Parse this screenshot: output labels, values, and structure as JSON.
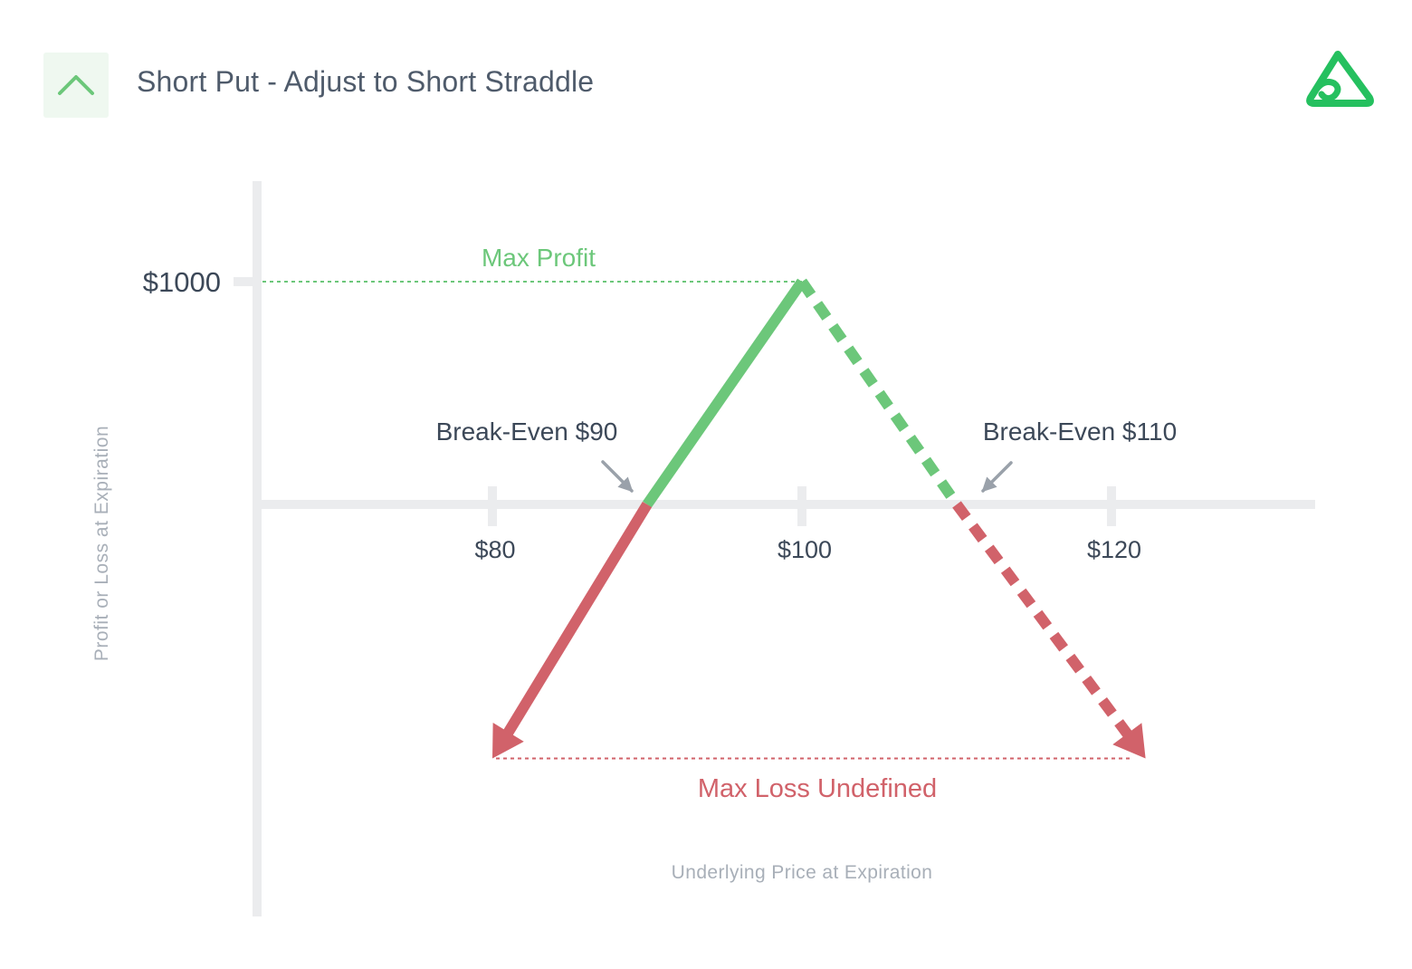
{
  "header": {
    "title": "Short Put - Adjust to Short Straddle",
    "badge_icon": "chevron-up-icon",
    "logo_icon": "brand-logo-icon"
  },
  "colors": {
    "profit": "#6cc77a",
    "loss": "#d1626a",
    "axis": "#ebecee",
    "text_dark": "#3c4858",
    "text_muted": "#a8afb8",
    "brand": "#25c05f"
  },
  "chart_data": {
    "type": "line",
    "title": "Short Put - Adjust to Short Straddle",
    "xlabel": "Underlying Price at Expiration",
    "ylabel": "Profit or Loss at Expiration",
    "x_ticks": [
      80,
      100,
      120
    ],
    "x_tick_labels": [
      "$80",
      "$100",
      "$120"
    ],
    "y_ticks": [
      1000
    ],
    "y_tick_labels": [
      "$1000"
    ],
    "xlim": [
      63.7,
      131.6
    ],
    "ylim": [
      -1955,
      1460
    ],
    "series": [
      {
        "style": "solid",
        "points": [
          {
            "x": 100,
            "y": 1000
          },
          {
            "x": 90,
            "y": 0
          },
          {
            "x": 80,
            "y": -1140
          }
        ],
        "end_arrow": true
      },
      {
        "style": "dashed",
        "points": [
          {
            "x": 100,
            "y": 1000
          },
          {
            "x": 110,
            "y": 0
          },
          {
            "x": 122.2,
            "y": -1140
          }
        ],
        "end_arrow": true
      }
    ],
    "annotations": {
      "max_profit": {
        "label": "Max Profit",
        "y": 1000
      },
      "max_loss": {
        "label": "Max Loss Undefined",
        "y": -1140
      },
      "break_even_low": {
        "label": "Break-Even $90",
        "x": 90
      },
      "break_even_high": {
        "label": "Break-Even $110",
        "x": 110
      }
    }
  }
}
